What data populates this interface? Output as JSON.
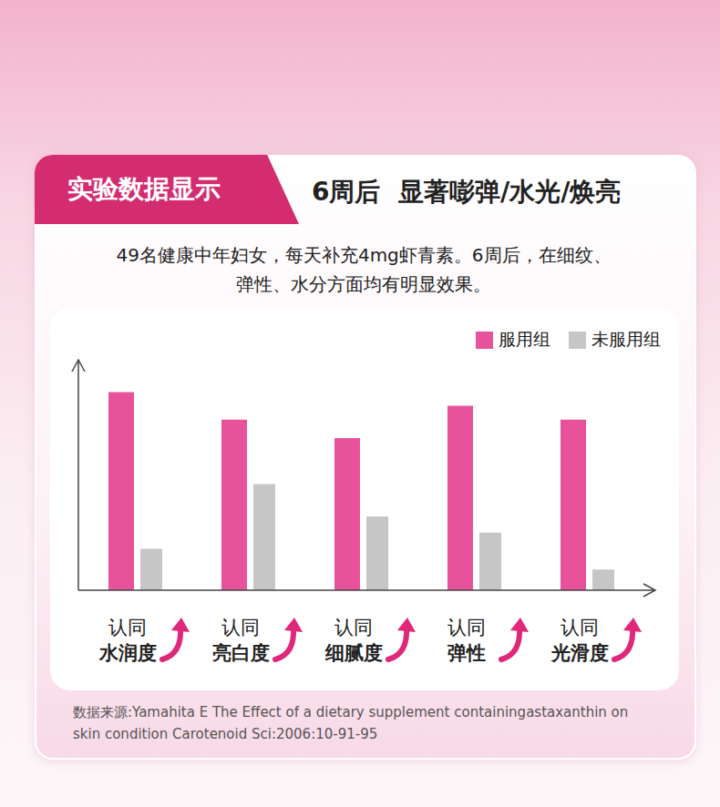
{
  "header": {
    "badge": "实验数据显示",
    "headline": "6周后  显著嘭弹/水光/焕亮"
  },
  "description": [
    "49名健康中年妇女，每天补充4mg虾青素。6周后，在细纹、",
    "弹性、水分方面均有明显效果。"
  ],
  "chart_data": {
    "type": "bar",
    "categories": [
      "认同\n水润度",
      "认同\n亮白度",
      "认同\n细腻度",
      "认同\n弹性",
      "认同\n光滑度"
    ],
    "series": [
      {
        "name": "服用组",
        "color": "#e8529a",
        "values": [
          86,
          74,
          66,
          80,
          74
        ]
      },
      {
        "name": "未服用组",
        "color": "#c6c6c6",
        "values": [
          18,
          46,
          32,
          25,
          9
        ]
      }
    ],
    "ylim": [
      0,
      100
    ],
    "yticks": [],
    "grid": false,
    "legend": "top-right",
    "tick_labels": "x"
  },
  "source": "数据来源:Yamahita E The Effect of a dietary supplement containingastaxanthin on skin condition Carotenoid Sci:2006:10-91-95"
}
